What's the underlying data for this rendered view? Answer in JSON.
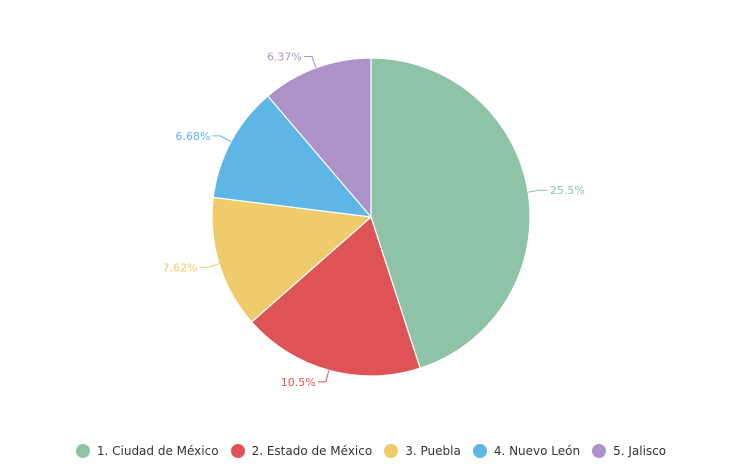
{
  "chart_data": {
    "type": "pie",
    "categories": [
      "1. Ciudad de México",
      "2. Estado de México",
      "3. Puebla",
      "4. Nuevo León",
      "5. Jalisco"
    ],
    "values": [
      25.5,
      10.5,
      7.62,
      6.68,
      6.37
    ],
    "labels": [
      "25.5%",
      "10.5%",
      "7.62%",
      "6.68%",
      "6.37%"
    ],
    "colors": [
      "#8fc3a8",
      "#de5456",
      "#f0cb6b",
      "#5db6e6",
      "#ae93c8"
    ],
    "legend_position": "bottom",
    "start_angle": "top, clockwise"
  }
}
